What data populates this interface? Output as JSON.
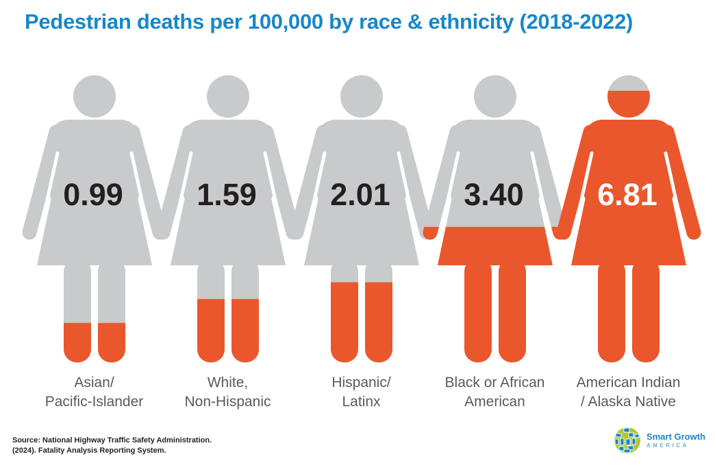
{
  "title": "Pedestrian deaths per 100,000 by race & ethnicity (2018-2022)",
  "chart_data": {
    "type": "pictogram",
    "title": "Pedestrian deaths per 100,000 by race & ethnicity (2018-2022)",
    "unit": "pedestrian deaths per 100,000 residents",
    "period": "2018-2022",
    "categories": [
      "Asian/Pacific-Islander",
      "White, Non-Hispanic",
      "Hispanic/Latinx",
      "Black or African American",
      "American Indian / Alaska Native"
    ],
    "values": [
      0.99,
      1.59,
      2.01,
      3.4,
      6.81
    ],
    "value_labels": [
      "0.99",
      "1.59",
      "2.01",
      "3.40",
      "6.81"
    ],
    "pictogram_scale_max": 7.2,
    "legend": "none",
    "annotation": "each person figure is filled with orange from the bottom in proportion to its value"
  },
  "figures": [
    {
      "label_line1": "Asian/",
      "label_line2": "Pacific-Islander",
      "value": 0.99,
      "value_display": "0.99",
      "value_text_color": "#231F20"
    },
    {
      "label_line1": "White,",
      "label_line2": "Non-Hispanic",
      "value": 1.59,
      "value_display": "1.59",
      "value_text_color": "#231F20"
    },
    {
      "label_line1": "Hispanic/",
      "label_line2": "Latinx",
      "value": 2.01,
      "value_display": "2.01",
      "value_text_color": "#231F20"
    },
    {
      "label_line1": "Black or African",
      "label_line2": "American",
      "value": 3.4,
      "value_display": "3.40",
      "value_text_color": "#231F20"
    },
    {
      "label_line1": "American Indian",
      "label_line2": "/ Alaska Native",
      "value": 6.81,
      "value_display": "6.81",
      "value_text_color": "#FFFFFF"
    }
  ],
  "source": {
    "line1": "Source: National Highway Traffic Safety Administration.",
    "line2": "(2024). Fatality Analysis Reporting System."
  },
  "logo": {
    "name": "Smart Growth America",
    "line1": "Smart Growth",
    "line2": "AMERICA",
    "icon": "city-mosaic-circle-icon"
  },
  "colors": {
    "background": "#FFFFFF",
    "title_blue": "#1787C8",
    "figure_gray": "#C9CACB",
    "figure_orange": "#EB572C",
    "label_gray": "#59595B",
    "source_dark": "#231F20",
    "logo_green": "#AFC636",
    "logo_blue": "#1787C8",
    "logo_america_blue": "#6FA9CF"
  }
}
